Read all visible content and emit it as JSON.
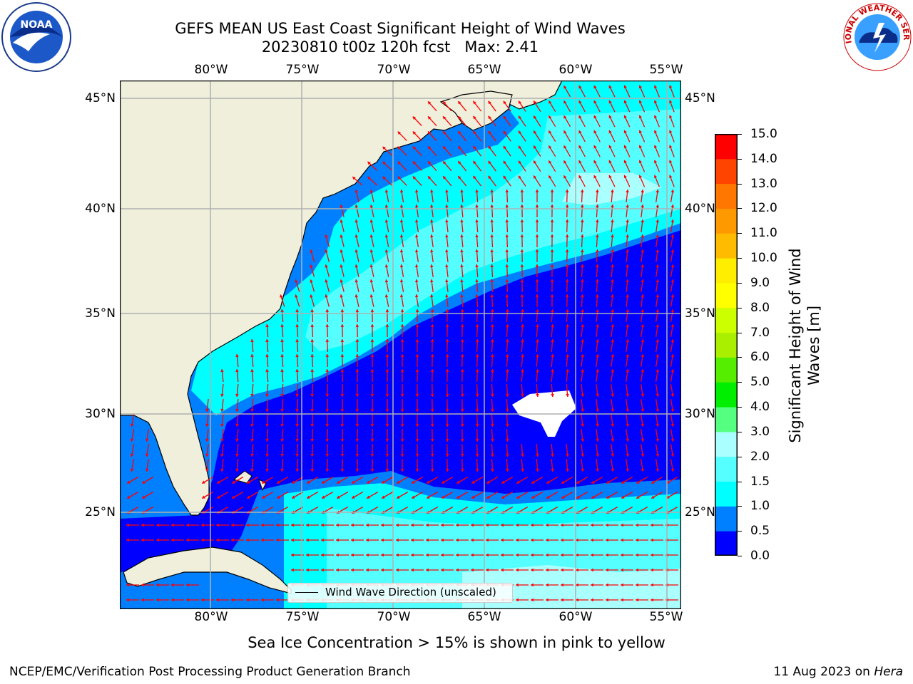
{
  "header": {
    "title_line1": "GEFS MEAN US East Coast Significant Height of Wind Waves",
    "title_line2": "20230810 t00z 120h fcst   Max: 2.41",
    "left_logo": "noaa-logo",
    "left_logo_text": "NOAA",
    "right_logo": "national-weather-service-logo",
    "right_logo_text": "NATIONAL WEATHER SERVICE"
  },
  "map": {
    "projection": "PlateCarree",
    "lon_range": [
      -85,
      -54.2
    ],
    "lat_range": [
      20.5,
      46
    ],
    "lon_ticks_top": [
      "80°W",
      "75°W",
      "70°W",
      "65°W",
      "60°W",
      "55°W"
    ],
    "lon_ticks_bottom": [
      "80°W",
      "75°W",
      "70°W",
      "65°W",
      "60°W",
      "55°W"
    ],
    "lat_ticks_left": [
      "45°N",
      "40°N",
      "35°N",
      "30°N",
      "25°N"
    ],
    "lat_ticks_right": [
      "45°N",
      "40°N",
      "35°N",
      "30°N",
      "25°N"
    ],
    "land_color": "#efefdc",
    "grid_color": "#b0b0b0",
    "arrow_color": "#ff0000",
    "legend_label": "Wind Wave Direction (unscaled)"
  },
  "colorbar": {
    "label": "Significant Height of Wind Waves [m]",
    "label_line1": "Significant Height of Wind",
    "label_line2": "Waves [m]",
    "ticks": [
      "15.0",
      "14.0",
      "13.0",
      "12.0",
      "11.0",
      "10.0",
      "9.0",
      "8.0",
      "7.0",
      "6.0",
      "5.0",
      "4.0",
      "3.0",
      "2.0",
      "1.5",
      "1.0",
      "0.5",
      "0.0"
    ],
    "colors_bottom_to_top": [
      "#0000ff",
      "#0080ff",
      "#00ffff",
      "#55ffff",
      "#aaffff",
      "#55ff80",
      "#00ee00",
      "#55ee00",
      "#aaee00",
      "#ccff00",
      "#ffff00",
      "#ffee00",
      "#ffbb00",
      "#ff9900",
      "#ff7700",
      "#ff4400",
      "#ff0000"
    ]
  },
  "footer": {
    "note": "Sea Ice Concentration > 15% is shown in pink to yellow",
    "left": "NCEP/EMC/Verification Post Processing Product Generation Branch",
    "right_date": "11 Aug 2023 on ",
    "right_machine": "Hera"
  }
}
